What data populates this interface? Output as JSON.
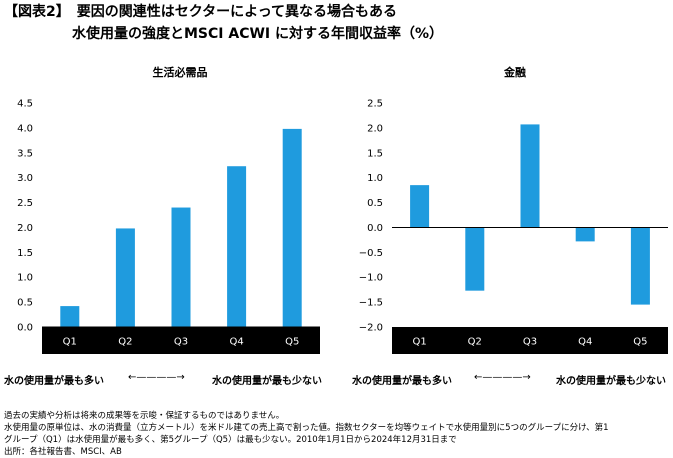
{
  "header": {
    "title_line1": "【図表2】　要因の関連性はセクターによって異なる場合もある",
    "title_line2": "水使用量の強度とMSCI ACWI に対する年間収益率（%）"
  },
  "colors": {
    "bar": "#1f9bde",
    "category_band": "#000000"
  },
  "chart_data": [
    {
      "type": "bar",
      "title": "生活必需品",
      "categories": [
        "Q1",
        "Q2",
        "Q3",
        "Q4",
        "Q5"
      ],
      "values": [
        0.42,
        1.98,
        2.4,
        3.23,
        3.98
      ],
      "ylim": [
        0,
        4.5
      ],
      "yticks": [
        "4.5",
        "4.0",
        "3.5",
        "3.0",
        "2.5",
        "2.0",
        "1.5",
        "1.0",
        "0.5",
        "0.0"
      ],
      "xlabel": "",
      "ylabel": "",
      "grid": false
    },
    {
      "type": "bar",
      "title": "金融",
      "categories": [
        "Q1",
        "Q2",
        "Q3",
        "Q4",
        "Q5"
      ],
      "values": [
        0.85,
        -1.27,
        2.07,
        -0.28,
        -1.55
      ],
      "ylim": [
        -2.0,
        2.5
      ],
      "yticks": [
        "2.5",
        "2.0",
        "1.5",
        "1.0",
        "0.5",
        "0.0",
        "−0.5",
        "−1.0",
        "−1.5",
        "−2.0"
      ],
      "xlabel": "",
      "ylabel": "",
      "grid": false
    }
  ],
  "axis_range_labels": [
    {
      "low": "水の使用量が最も多い",
      "arrow": "←————→",
      "high": "水の使用量が最も少ない"
    },
    {
      "low": "水の使用量が最も多い",
      "arrow": "←————→",
      "high": "水の使用量が最も少ない"
    }
  ],
  "notes": [
    "過去の実績や分析は将来の成果等を示唆・保証するものではありません。",
    "水使用量の原単位は、水の消費量（立方メートル）を米ドル建ての売上高で割った値。指数セクターを均等ウェイトで水使用量別に5つのグループに分け、第1",
    "グループ（Q1）は水使用量が最も多く、第5グループ（Q5）は最も少ない。2010年1月1日から2024年12月31日まで",
    "出所：各社報告書、MSCI、AB"
  ]
}
